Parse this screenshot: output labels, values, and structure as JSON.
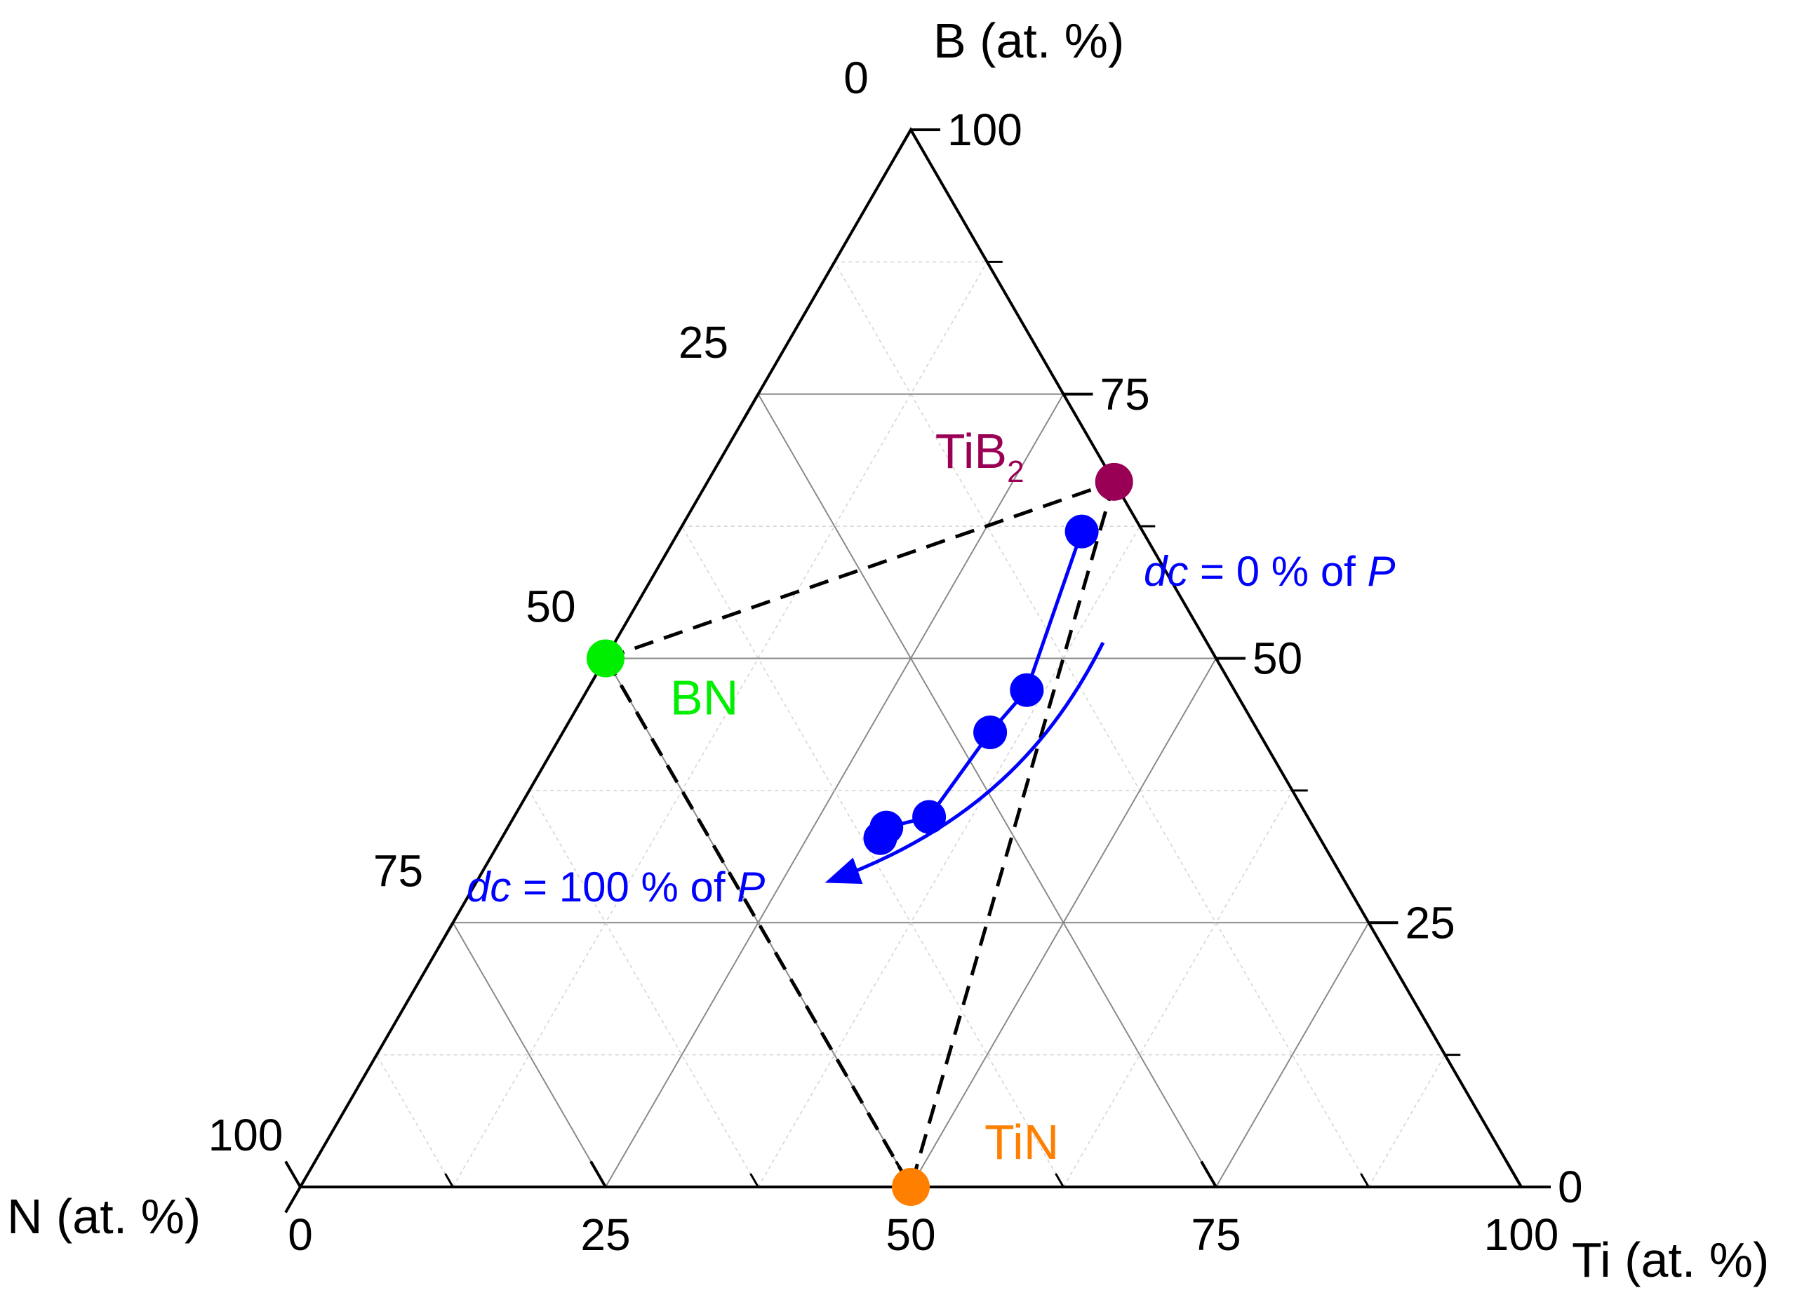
{
  "chart_data": {
    "type": "scatter",
    "subtype": "ternary",
    "axes": {
      "B": {
        "label": "B (at. %)",
        "range": [
          0,
          100
        ],
        "ticks": [
          "0",
          "25",
          "50",
          "75",
          "100"
        ]
      },
      "Ti": {
        "label": "Ti (at. %)",
        "range": [
          0,
          100
        ],
        "ticks": [
          "0",
          "25",
          "50",
          "75",
          "100"
        ]
      },
      "N": {
        "label": "N (at. %)",
        "range": [
          0,
          100
        ],
        "ticks": [
          "0",
          "25",
          "50",
          "75",
          "100"
        ]
      }
    },
    "tick_values": [
      0,
      25,
      50,
      75,
      100
    ],
    "grid": true,
    "phases": [
      {
        "name": "BN",
        "label": "BN",
        "color": "#00ee00",
        "B": 50,
        "N": 50,
        "Ti": 0
      },
      {
        "name": "TiB2",
        "label": "TiB",
        "subscript": "2",
        "color": "#990055",
        "B": 66.7,
        "N": 0,
        "Ti": 33.3
      },
      {
        "name": "TiN",
        "label": "TiN",
        "color": "#ff8000",
        "B": 0,
        "N": 50,
        "Ti": 50
      }
    ],
    "tie_lines": [
      [
        "BN",
        "TiB2"
      ],
      [
        "BN",
        "TiN"
      ],
      [
        "TiB2",
        "TiN"
      ]
    ],
    "series": [
      {
        "color": "#0000ff",
        "points": [
          {
            "B": 62,
            "N": 5,
            "Ti": 33
          },
          {
            "B": 47,
            "N": 17,
            "Ti": 36
          },
          {
            "B": 43,
            "N": 22,
            "Ti": 35
          },
          {
            "B": 35,
            "N": 31,
            "Ti": 34
          },
          {
            "B": 34,
            "N": 35,
            "Ti": 31
          },
          {
            "B": 33,
            "N": 36,
            "Ti": 31
          }
        ]
      }
    ],
    "annotations": [
      {
        "prefix": "dc",
        "middle": " = 0 % of ",
        "suffix": "P",
        "color": "#0000ff"
      },
      {
        "prefix": "dc",
        "middle": " = 100 % of ",
        "suffix": "P",
        "color": "#0000ff"
      }
    ],
    "arrow": {
      "color": "#0000ff",
      "direction": "from dc = 0 % of P to dc = 100 % of P"
    }
  }
}
